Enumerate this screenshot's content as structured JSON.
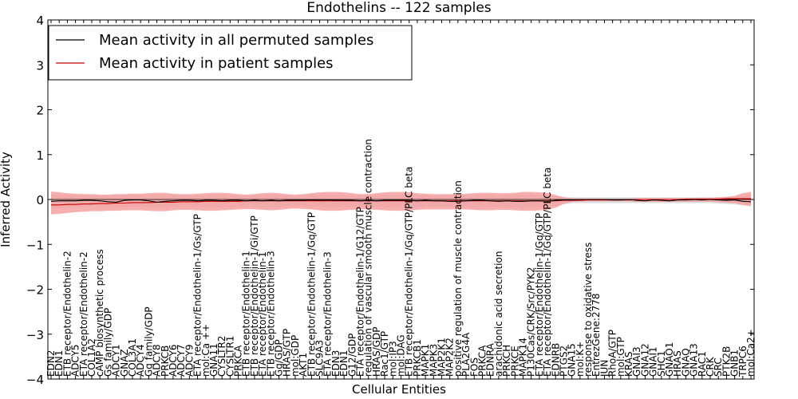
{
  "chart_data": {
    "type": "line",
    "title": "Endothelins -- 122 samples",
    "xlabel": "Cellular Entities",
    "ylabel": "Inferred Activity",
    "ylim": [
      -4,
      4
    ],
    "yticks": [
      "4",
      "3",
      "2",
      "1",
      "0",
      "−1",
      "−2",
      "−3",
      "−4"
    ],
    "ytick_values": [
      4,
      3,
      2,
      1,
      0,
      -1,
      -2,
      -3,
      -4
    ],
    "legend": {
      "placement": "top-left",
      "entries": [
        {
          "label": "Mean activity in all permuted samples",
          "color": "#000000"
        },
        {
          "label": "Mean activity in patient samples",
          "color": "#cc0000"
        }
      ]
    },
    "colors": {
      "permuted_band": "#d0d0d0",
      "patient_band": "#f4a0a0",
      "patient_line": "#cc0000",
      "permuted_line": "#000000"
    },
    "categories": [
      "EDN2",
      "EDN1",
      "ETB receptor/Endothelin-2",
      "ADCY5",
      "ETA receptor/Endothelin-2",
      "COL1A2",
      "cAMP biosynthetic process",
      "Gs family/GDP",
      "ADCY1",
      "GNAZ",
      "COL3A1",
      "ADCY4",
      "Gq family/GDP",
      "ADCY8",
      "PRKCB",
      "ADCY6",
      "ADCY7",
      "ADCY9",
      "ETA receptor/Endothelin-1/Gs/GTP",
      "mol:Ca ++",
      "GNA11",
      "CYSLTR2",
      "CYSLTR1",
      "PRKCA",
      "ETB receptor/Endothelin-1",
      "ETB receptor/Endothelin-1/Gi/GTP",
      "ETA receptor/Endothelin-1",
      "ETB receptor/Endothelin-3",
      "Gq/GDP",
      "HRAS/GTP",
      "mol:GDP",
      "AKT1",
      "ETB receptor/Endothelin-1/Gq/GTP",
      "SLC9A3",
      "ETA receptor/Endothelin-3",
      "EDN3",
      "EDN1",
      "G12/GDP",
      "ETA receptor/Endothelin-1/G12/GTP",
      "regulation of vascular smooth muscle contraction",
      "HRAS/GDP",
      "Rac1/GTP",
      "mol:IP3",
      "mol:DAG",
      "ETB receptor/Endothelin-1/Gq/GTP/PLC beta",
      "PRKCB1",
      "MAPK1",
      "MAPK3",
      "MAP2K1",
      "MAP2K2",
      "positive regulation of muscle contraction",
      "PLA2G4A",
      "FOS",
      "PRKCA",
      "EDNRA",
      "arachidonic acid secretion",
      "PRKCH",
      "PRKCE",
      "MAPK14",
      "P130Cas/CRK/Src/PYK2",
      "ETA receptor/Endothelin-1/Gq/GTP",
      "ETA receptor/Endothelin-1/Gq/GTP/PLC beta",
      "EDNRB",
      "PTGS2",
      "GNA15",
      "mol:K+",
      "response to oxidative stress",
      "EntrezGene:2778",
      "JUN",
      "RhoA/GTP",
      "mol:GTP",
      "KRAS",
      "GNAI3",
      "GNA12",
      "GNAI1",
      "SHC1",
      "GNAO1",
      "HRAS",
      "GNAQ",
      "GNA13",
      "RAC1",
      "CRK",
      "SRC",
      "PTK2B",
      "GNB1",
      "TRPC6",
      "mol:Ca2+"
    ],
    "series": [
      {
        "name": "Mean activity in patient samples",
        "values": [
          -0.12,
          -0.12,
          -0.11,
          -0.11,
          -0.1,
          -0.1,
          -0.09,
          -0.09,
          -0.08,
          -0.08,
          -0.07,
          -0.07,
          -0.07,
          -0.06,
          -0.06,
          -0.06,
          -0.05,
          -0.05,
          -0.05,
          -0.04,
          -0.04,
          -0.04,
          -0.04,
          -0.04,
          -0.03,
          -0.03,
          -0.03,
          -0.03,
          -0.03,
          -0.03,
          -0.03,
          -0.03,
          -0.03,
          -0.03,
          -0.03,
          -0.03,
          -0.03,
          -0.03,
          -0.03,
          -0.03,
          -0.03,
          -0.03,
          -0.03,
          -0.03,
          -0.03,
          -0.03,
          -0.03,
          -0.03,
          -0.03,
          -0.03,
          -0.03,
          -0.03,
          -0.03,
          -0.03,
          -0.03,
          -0.03,
          -0.03,
          -0.03,
          -0.03,
          -0.03,
          -0.03,
          -0.03,
          -0.03,
          -0.02,
          -0.02,
          -0.02,
          -0.01,
          -0.01,
          -0.01,
          -0.01,
          -0.01,
          -0.01,
          0.0,
          0.0,
          0.0,
          0.0,
          0.0,
          0.0,
          0.01,
          0.01,
          0.01,
          0.01,
          0.01,
          0.02,
          0.02,
          0.02,
          0.02
        ]
      },
      {
        "name": "Mean activity in all permuted samples",
        "values": [
          -0.04,
          -0.03,
          -0.03,
          -0.03,
          -0.02,
          -0.02,
          -0.03,
          -0.05,
          -0.06,
          -0.02,
          -0.01,
          -0.01,
          -0.03,
          -0.06,
          -0.04,
          -0.03,
          -0.02,
          -0.02,
          -0.03,
          -0.02,
          -0.02,
          -0.03,
          -0.02,
          -0.02,
          -0.03,
          -0.02,
          -0.03,
          -0.02,
          -0.03,
          -0.02,
          -0.02,
          -0.02,
          -0.01,
          -0.02,
          -0.01,
          -0.02,
          -0.02,
          -0.02,
          -0.03,
          -0.02,
          -0.03,
          -0.02,
          -0.02,
          -0.02,
          -0.02,
          -0.03,
          -0.02,
          -0.03,
          -0.03,
          -0.04,
          -0.04,
          -0.03,
          -0.02,
          -0.02,
          -0.03,
          -0.04,
          -0.03,
          -0.04,
          -0.04,
          -0.03,
          -0.03,
          -0.04,
          -0.02,
          -0.01,
          -0.01,
          0.0,
          0.0,
          0.0,
          0.0,
          -0.01,
          -0.01,
          0.0,
          -0.02,
          -0.03,
          -0.01,
          -0.02,
          -0.03,
          -0.01,
          -0.01,
          0.0,
          -0.01,
          0.0,
          -0.01,
          -0.02,
          -0.01,
          -0.04,
          -0.05
        ]
      }
    ],
    "bands": {
      "patient_upper": [
        0.18,
        0.16,
        0.14,
        0.13,
        0.12,
        0.12,
        0.11,
        0.11,
        0.12,
        0.12,
        0.13,
        0.13,
        0.14,
        0.15,
        0.15,
        0.13,
        0.12,
        0.12,
        0.13,
        0.14,
        0.15,
        0.15,
        0.14,
        0.12,
        0.11,
        0.12,
        0.14,
        0.15,
        0.14,
        0.12,
        0.11,
        0.12,
        0.14,
        0.16,
        0.17,
        0.17,
        0.16,
        0.14,
        0.12,
        0.12,
        0.14,
        0.16,
        0.17,
        0.17,
        0.16,
        0.14,
        0.13,
        0.12,
        0.12,
        0.12,
        0.12,
        0.13,
        0.14,
        0.15,
        0.15,
        0.14,
        0.14,
        0.15,
        0.17,
        0.17,
        0.16,
        0.15,
        0.1,
        0.05,
        0.03,
        0.02,
        0.02,
        0.02,
        0.02,
        0.02,
        0.02,
        0.02,
        0.03,
        0.03,
        0.03,
        0.03,
        0.03,
        0.03,
        0.03,
        0.03,
        0.04,
        0.04,
        0.05,
        0.06,
        0.08,
        0.14,
        0.17
      ],
      "patient_lower": [
        -0.33,
        -0.32,
        -0.3,
        -0.28,
        -0.27,
        -0.26,
        -0.26,
        -0.25,
        -0.25,
        -0.24,
        -0.24,
        -0.24,
        -0.25,
        -0.26,
        -0.26,
        -0.24,
        -0.23,
        -0.23,
        -0.24,
        -0.25,
        -0.25,
        -0.24,
        -0.23,
        -0.22,
        -0.21,
        -0.22,
        -0.23,
        -0.24,
        -0.23,
        -0.21,
        -0.2,
        -0.21,
        -0.22,
        -0.24,
        -0.25,
        -0.25,
        -0.24,
        -0.23,
        -0.22,
        -0.22,
        -0.23,
        -0.24,
        -0.25,
        -0.25,
        -0.24,
        -0.23,
        -0.22,
        -0.22,
        -0.22,
        -0.22,
        -0.22,
        -0.22,
        -0.23,
        -0.24,
        -0.24,
        -0.23,
        -0.23,
        -0.24,
        -0.25,
        -0.25,
        -0.24,
        -0.23,
        -0.18,
        -0.1,
        -0.05,
        -0.04,
        -0.04,
        -0.04,
        -0.04,
        -0.04,
        -0.04,
        -0.04,
        -0.05,
        -0.05,
        -0.05,
        -0.05,
        -0.05,
        -0.05,
        -0.05,
        -0.05,
        -0.05,
        -0.05,
        -0.06,
        -0.07,
        -0.08,
        -0.12,
        -0.14
      ],
      "permuted_upper": [
        0.12,
        0.11,
        0.1,
        0.1,
        0.1,
        0.09,
        0.09,
        0.09,
        0.1,
        0.1,
        0.1,
        0.1,
        0.1,
        0.11,
        0.11,
        0.1,
        0.09,
        0.09,
        0.1,
        0.1,
        0.1,
        0.1,
        0.1,
        0.09,
        0.09,
        0.09,
        0.1,
        0.1,
        0.1,
        0.09,
        0.08,
        0.09,
        0.1,
        0.11,
        0.11,
        0.11,
        0.1,
        0.1,
        0.09,
        0.09,
        0.1,
        0.11,
        0.11,
        0.11,
        0.1,
        0.1,
        0.09,
        0.09,
        0.09,
        0.09,
        0.09,
        0.09,
        0.1,
        0.1,
        0.1,
        0.1,
        0.1,
        0.1,
        0.11,
        0.11,
        0.1,
        0.1,
        0.08,
        0.06,
        0.05,
        0.05,
        0.05,
        0.05,
        0.05,
        0.05,
        0.05,
        0.05,
        0.05,
        0.05,
        0.05,
        0.05,
        0.05,
        0.05,
        0.05,
        0.05,
        0.05,
        0.05,
        0.05,
        0.05,
        0.06,
        0.08,
        0.1
      ],
      "permuted_lower": [
        -0.2,
        -0.19,
        -0.18,
        -0.17,
        -0.17,
        -0.16,
        -0.16,
        -0.16,
        -0.17,
        -0.17,
        -0.16,
        -0.16,
        -0.17,
        -0.18,
        -0.18,
        -0.17,
        -0.16,
        -0.16,
        -0.17,
        -0.17,
        -0.17,
        -0.17,
        -0.16,
        -0.16,
        -0.15,
        -0.16,
        -0.17,
        -0.17,
        -0.17,
        -0.16,
        -0.15,
        -0.15,
        -0.16,
        -0.17,
        -0.18,
        -0.18,
        -0.17,
        -0.17,
        -0.16,
        -0.16,
        -0.17,
        -0.17,
        -0.18,
        -0.18,
        -0.17,
        -0.17,
        -0.16,
        -0.16,
        -0.16,
        -0.16,
        -0.16,
        -0.16,
        -0.17,
        -0.17,
        -0.17,
        -0.17,
        -0.17,
        -0.17,
        -0.18,
        -0.18,
        -0.17,
        -0.17,
        -0.14,
        -0.1,
        -0.08,
        -0.08,
        -0.08,
        -0.08,
        -0.08,
        -0.08,
        -0.08,
        -0.08,
        -0.08,
        -0.08,
        -0.08,
        -0.08,
        -0.08,
        -0.08,
        -0.08,
        -0.08,
        -0.08,
        -0.08,
        -0.09,
        -0.1,
        -0.11,
        -0.13,
        -0.15
      ]
    }
  }
}
